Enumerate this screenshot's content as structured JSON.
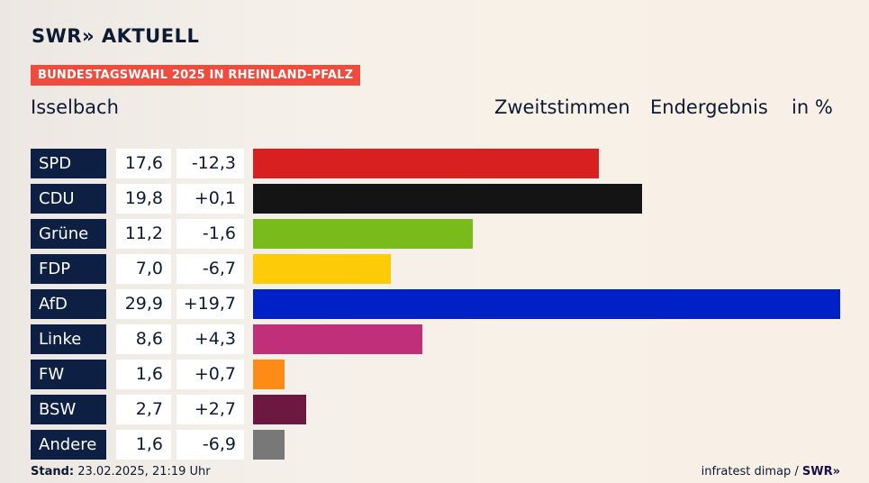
{
  "brand": {
    "logo": "SWR» AKTUELL",
    "source_logo": "SWR»"
  },
  "header": {
    "badge": "BUNDESTAGSWAHL 2025 IN RHEINLAND-PFALZ",
    "place": "Isselbach",
    "col1": "Zweitstimmen",
    "col2": "Endergebnis",
    "col3": "in %"
  },
  "footer": {
    "stand_label": "Stand:",
    "stand_value": "23.02.2025, 21:19 Uhr",
    "source": "infratest dimap /"
  },
  "chart_data": {
    "type": "bar",
    "orientation": "horizontal",
    "title": "Bundestagswahl 2025 in Rheinland-Pfalz – Isselbach",
    "subtitle": "Zweitstimmen Endergebnis in %",
    "xlabel": "",
    "ylabel": "",
    "xlim": [
      0,
      29.9
    ],
    "grid": false,
    "categories": [
      "SPD",
      "CDU",
      "Grüne",
      "FDP",
      "AfD",
      "Linke",
      "FW",
      "BSW",
      "Andere"
    ],
    "values": [
      17.6,
      19.8,
      11.2,
      7.0,
      29.9,
      8.6,
      1.6,
      2.7,
      1.6
    ],
    "value_labels": [
      "17,6",
      "19,8",
      "11,2",
      "7,0",
      "29,9",
      "8,6",
      "1,6",
      "2,7",
      "1,6"
    ],
    "diffs": [
      -12.3,
      0.1,
      -1.6,
      -6.7,
      19.7,
      4.3,
      0.7,
      2.7,
      -6.9
    ],
    "diff_labels": [
      "-12,3",
      "+0,1",
      "-1,6",
      "-6,7",
      "+19,7",
      "+4,3",
      "+0,7",
      "+2,7",
      "-6,9"
    ],
    "colors": [
      "#d7201f",
      "#141414",
      "#79bb1b",
      "#fecb08",
      "#0021c6",
      "#c0307a",
      "#fe8b15",
      "#6c1840",
      "#787878"
    ]
  }
}
